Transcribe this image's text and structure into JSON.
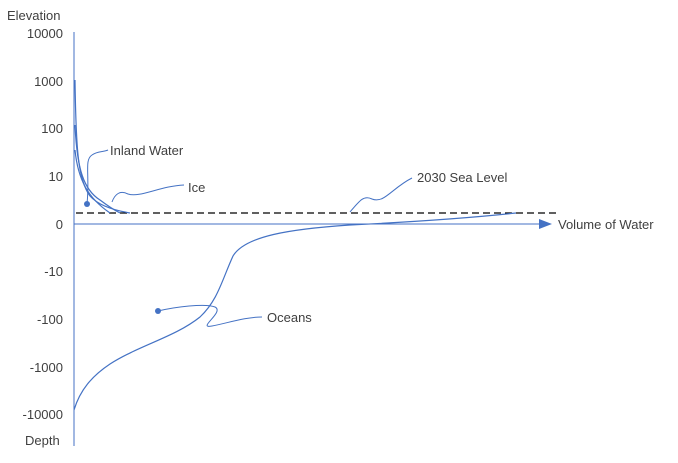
{
  "axes": {
    "y_top_label": "Elevation",
    "y_bottom_label": "Depth",
    "x_label": "Volume of Water",
    "ticks": [
      "10000",
      "1000",
      "100",
      "10",
      "0",
      "-10",
      "-100",
      "-1000",
      "-10000"
    ]
  },
  "annotations": {
    "inland_water": "Inland Water",
    "ice": "Ice",
    "sea_level_2030": "2030 Sea Level",
    "oceans": "Oceans"
  },
  "colors": {
    "curve": "#4472c4",
    "axis": "#4472c4",
    "dashed_line": "#000000",
    "text": "#404040"
  },
  "styles": {
    "sea_level_line": "dashed"
  }
}
